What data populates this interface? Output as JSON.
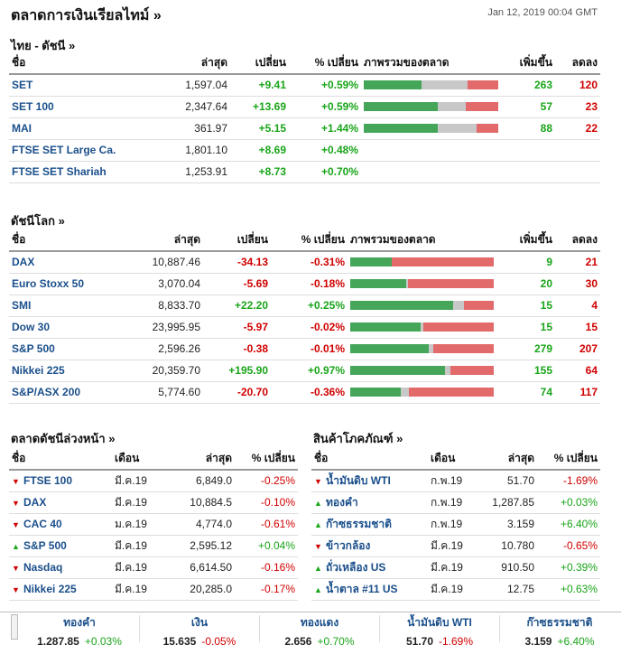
{
  "title": "ตลาดการเงินเรียลไทม์ »",
  "date": "Jan 12, 2019 00:04 GMT",
  "thai": {
    "title": "ไทย - ดัชนี  »",
    "headers": [
      "ชื่อ",
      "ล่าสุด",
      "เปลี่ยน",
      "% เปลี่ยน",
      "ภาพรวมของตลาด",
      "เพิ่มขึ้น",
      "ลดลง"
    ],
    "rows": [
      {
        "name": "SET",
        "last": "1,597.04",
        "chg": "+9.41",
        "pct": "+0.59%",
        "adv": "263",
        "dec": "120",
        "bar": [
          0.43,
          0.34,
          0.23
        ]
      },
      {
        "name": "SET 100",
        "last": "2,347.64",
        "chg": "+13.69",
        "pct": "+0.59%",
        "adv": "57",
        "dec": "23",
        "bar": [
          0.55,
          0.21,
          0.24
        ]
      },
      {
        "name": "MAI",
        "last": "361.97",
        "chg": "+5.15",
        "pct": "+1.44%",
        "adv": "88",
        "dec": "22",
        "bar": [
          0.55,
          0.29,
          0.16
        ]
      },
      {
        "name": "FTSE SET Large Ca.",
        "last": "1,801.10",
        "chg": "+8.69",
        "pct": "+0.48%",
        "adv": "",
        "dec": "",
        "bar": null
      },
      {
        "name": "FTSE SET Shariah",
        "last": "1,253.91",
        "chg": "+8.73",
        "pct": "+0.70%",
        "adv": "",
        "dec": "",
        "bar": null
      }
    ]
  },
  "world": {
    "title": "ดัชนีโลก »",
    "headers": [
      "ชื่อ",
      "ล่าสุด",
      "เปลี่ยน",
      "% เปลี่ยน",
      "ภาพรวมของตลาด",
      "เพิ่มขึ้น",
      "ลดลง"
    ],
    "rows": [
      {
        "name": "DAX",
        "last": "10,887.46",
        "chg": "-34.13",
        "pct": "-0.31%",
        "adv": "9",
        "dec": "21",
        "bar": [
          0.29,
          0.0,
          0.71
        ]
      },
      {
        "name": "Euro Stoxx 50",
        "last": "3,070.04",
        "chg": "-5.69",
        "pct": "-0.18%",
        "adv": "20",
        "dec": "30",
        "bar": [
          0.39,
          0.01,
          0.6
        ]
      },
      {
        "name": "SMI",
        "last": "8,833.70",
        "chg": "+22.20",
        "pct": "+0.25%",
        "adv": "15",
        "dec": "4",
        "bar": [
          0.72,
          0.07,
          0.21
        ]
      },
      {
        "name": "Dow 30",
        "last": "23,995.95",
        "chg": "-5.97",
        "pct": "-0.02%",
        "adv": "15",
        "dec": "15",
        "bar": [
          0.49,
          0.02,
          0.49
        ]
      },
      {
        "name": "S&P 500",
        "last": "2,596.26",
        "chg": "-0.38",
        "pct": "-0.01%",
        "adv": "279",
        "dec": "207",
        "bar": [
          0.55,
          0.03,
          0.42
        ]
      },
      {
        "name": "Nikkei 225",
        "last": "20,359.70",
        "chg": "+195.90",
        "pct": "+0.97%",
        "adv": "155",
        "dec": "64",
        "bar": [
          0.66,
          0.04,
          0.3
        ]
      },
      {
        "name": "S&P/ASX 200",
        "last": "5,774.60",
        "chg": "-20.70",
        "pct": "-0.36%",
        "adv": "74",
        "dec": "117",
        "bar": [
          0.35,
          0.06,
          0.59
        ]
      }
    ]
  },
  "futures": {
    "title": "ตลาดดัชนีล่วงหน้า »",
    "headers": [
      "ชื่อ",
      "เดือน",
      "ล่าสุด",
      "% เปลี่ยน"
    ],
    "rows": [
      {
        "name": "FTSE 100",
        "month": "มี.ค.19",
        "last": "6,849.0",
        "pct": "-0.25%",
        "dir": "down"
      },
      {
        "name": "DAX",
        "month": "มี.ค.19",
        "last": "10,884.5",
        "pct": "-0.10%",
        "dir": "down"
      },
      {
        "name": "CAC 40",
        "month": "ม.ค.19",
        "last": "4,774.0",
        "pct": "-0.61%",
        "dir": "down"
      },
      {
        "name": "S&P 500",
        "month": "มี.ค.19",
        "last": "2,595.12",
        "pct": "+0.04%",
        "dir": "up"
      },
      {
        "name": "Nasdaq",
        "month": "มี.ค.19",
        "last": "6,614.50",
        "pct": "-0.16%",
        "dir": "down"
      },
      {
        "name": "Nikkei 225",
        "month": "มี.ค.19",
        "last": "20,285.0",
        "pct": "-0.17%",
        "dir": "down"
      }
    ]
  },
  "commodities": {
    "title": "สินค้าโภคภัณฑ์ »",
    "headers": [
      "ชื่อ",
      "เดือน",
      "ล่าสุด",
      "% เปลี่ยน"
    ],
    "rows": [
      {
        "name": "น้ำมันดิบ WTI",
        "month": "ก.พ.19",
        "last": "51.70",
        "pct": "-1.69%",
        "dir": "down"
      },
      {
        "name": "ทองคำ",
        "month": "ก.พ.19",
        "last": "1,287.85",
        "pct": "+0.03%",
        "dir": "up"
      },
      {
        "name": "ก๊าซธรรมชาติ",
        "month": "ก.พ.19",
        "last": "3.159",
        "pct": "+6.40%",
        "dir": "up"
      },
      {
        "name": "ข้าวกล้อง",
        "month": "มี.ค.19",
        "last": "10.780",
        "pct": "-0.65%",
        "dir": "down"
      },
      {
        "name": "ถั่วเหลือง US",
        "month": "มี.ค.19",
        "last": "910.50",
        "pct": "+0.39%",
        "dir": "up"
      },
      {
        "name": "น้ำตาล #11 US",
        "month": "มี.ค.19",
        "last": "12.75",
        "pct": "+0.63%",
        "dir": "up"
      }
    ]
  },
  "ticker": [
    {
      "name": "ทองคำ",
      "value": "1,287.85",
      "chg": "+0.03%",
      "dir": "up"
    },
    {
      "name": "เงิน",
      "value": "15.635",
      "chg": "-0.05%",
      "dir": "down"
    },
    {
      "name": "ทองแดง",
      "value": "2.656",
      "chg": "+0.70%",
      "dir": "up"
    },
    {
      "name": "น้ำมันดิบ WTI",
      "value": "51.70",
      "chg": "-1.69%",
      "dir": "down"
    },
    {
      "name": "ก๊าซธรรมชาติ",
      "value": "3.159",
      "chg": "+6.40%",
      "dir": "up"
    }
  ],
  "colors": {
    "up": "#1aa51a",
    "down": "#d00000",
    "link": "#1a4f8b",
    "bar_green": "#45a65a",
    "bar_grey": "#c8c8c8",
    "bar_red": "#e26a6a"
  }
}
